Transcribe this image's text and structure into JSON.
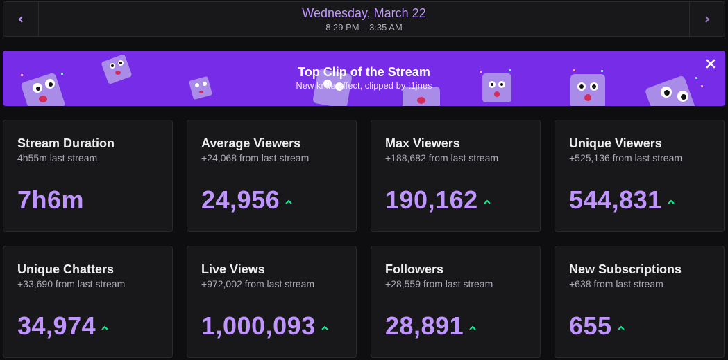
{
  "header": {
    "date": "Wednesday, March 22",
    "time_range": "8:29 PM – 3:35 AM",
    "prev_icon": "chevron-left-icon",
    "next_icon": "chevron-right-icon"
  },
  "banner": {
    "title": "Top Clip of the Stream",
    "subtitle": "New knife effect, clipped by t1jnes",
    "close_icon": "close-icon",
    "background": "#772ce8"
  },
  "colors": {
    "accent": "#bf94ff",
    "trend_up": "#00f593",
    "card_bg": "#18181b",
    "page_bg": "#0e0e10"
  },
  "stats": [
    {
      "title": "Stream Duration",
      "subtitle": "4h55m last stream",
      "value": "7h6m",
      "trend": "none"
    },
    {
      "title": "Average Viewers",
      "subtitle": "+24,068 from last stream",
      "value": "24,956",
      "trend": "up"
    },
    {
      "title": "Max Viewers",
      "subtitle": "+188,682 from last stream",
      "value": "190,162",
      "trend": "up"
    },
    {
      "title": "Unique Viewers",
      "subtitle": "+525,136 from last stream",
      "value": "544,831",
      "trend": "up"
    },
    {
      "title": "Unique Chatters",
      "subtitle": "+33,690 from last stream",
      "value": "34,974",
      "trend": "up"
    },
    {
      "title": "Live Views",
      "subtitle": "+972,002 from last stream",
      "value": "1,000,093",
      "trend": "up"
    },
    {
      "title": "Followers",
      "subtitle": "+28,559 from last stream",
      "value": "28,891",
      "trend": "up"
    },
    {
      "title": "New Subscriptions",
      "subtitle": "+638 from last stream",
      "value": "655",
      "trend": "up"
    }
  ]
}
